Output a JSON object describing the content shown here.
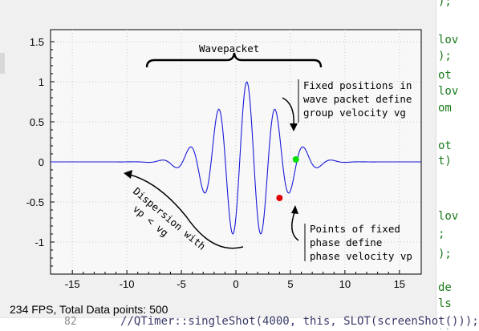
{
  "status": {
    "text": "234 FPS, Total Data points: 500"
  },
  "plot": {
    "x_ticks": [
      "-15",
      "-10",
      "-5",
      "0",
      "5",
      "10",
      "15"
    ],
    "y_ticks": [
      "1.5",
      "1",
      "0.5",
      "0",
      "-0.5",
      "-1"
    ],
    "annotations": {
      "wavepacket": "Wavepacket",
      "group_lines": [
        "Fixed positions in",
        "wave packet define",
        "group velocity vg"
      ],
      "phase_lines": [
        "Points of fixed",
        "phase define",
        "phase velocity vp"
      ],
      "dispersion_lines": [
        "Dispersion with",
        "vp < vg"
      ]
    },
    "colors": {
      "curve": "#1a1ad8",
      "group_point": "#00e000",
      "phase_point": "#e00000",
      "grid": "#c8c8c8"
    }
  },
  "chart_data": {
    "type": "line",
    "series": [
      {
        "name": "",
        "function": "exp(-((x-1)^2)/16) * cos(2.4*(x-1))"
      }
    ],
    "xlim": [
      -17,
      17
    ],
    "ylim": [
      -1.4,
      1.65
    ],
    "x_ticks": [
      -15,
      -10,
      -5,
      0,
      5,
      10,
      15
    ],
    "y_ticks": [
      -1,
      -0.5,
      0,
      0.5,
      1,
      1.5
    ],
    "grid": true,
    "points": [
      {
        "label": "group",
        "x": 5.5,
        "y": 0.03,
        "color": "#00e000"
      },
      {
        "label": "phase",
        "x": 4.0,
        "y": -0.45,
        "color": "#e00000"
      }
    ]
  },
  "code_fragments": [
    ");",
    "lov",
    ");",
    "ot",
    "lov",
    "om",
    "ot",
    "t)",
    "lov",
    ";",
    ");",
    "de",
    "ls",
    ");"
  ],
  "bottom_code": {
    "line_number": "82",
    "text": "//QTimer::singleShot(4000, this, SLOT(screenShot()));"
  }
}
